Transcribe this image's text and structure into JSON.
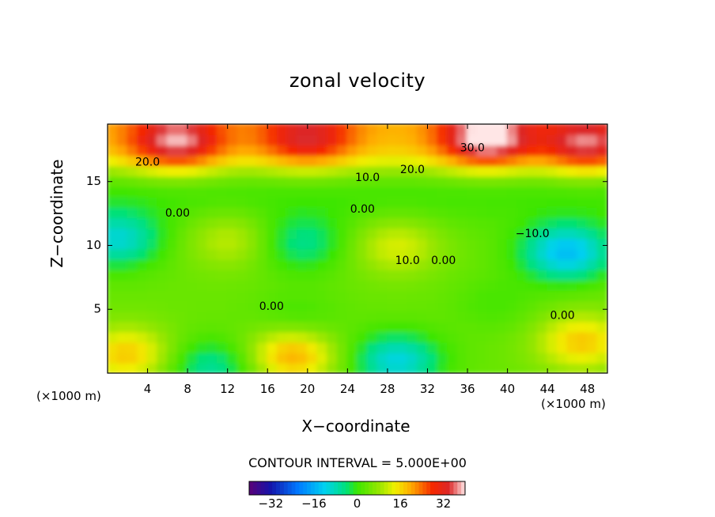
{
  "chart_data": {
    "type": "heatmap",
    "title": "zonal velocity",
    "xlabel": "X−coordinate",
    "ylabel": "Z−coordinate",
    "x_scale_note": "(×1000 m)",
    "y_scale_note": "(×1000 m)",
    "xlim": [
      0,
      50
    ],
    "ylim": [
      0,
      19.5
    ],
    "x_ticks": [
      4,
      8,
      12,
      16,
      20,
      24,
      28,
      32,
      36,
      40,
      44,
      48
    ],
    "y_ticks": [
      5,
      10,
      15
    ],
    "contour_interval_label": "CONTOUR INTERVAL = 5.000E+00",
    "contour_labels": [
      {
        "text": "20.0",
        "x": 4,
        "y": 16.5
      },
      {
        "text": "30.0",
        "x": 36.5,
        "y": 17.6
      },
      {
        "text": "20.0",
        "x": 30.5,
        "y": 15.9
      },
      {
        "text": "10.0",
        "x": 26,
        "y": 15.3
      },
      {
        "text": "0.00",
        "x": 7,
        "y": 12.5
      },
      {
        "text": "0.00",
        "x": 25.5,
        "y": 12.8
      },
      {
        "text": "−10.0",
        "x": 42.5,
        "y": 10.9
      },
      {
        "text": "10.0",
        "x": 30,
        "y": 8.8
      },
      {
        "text": "0.00",
        "x": 33.6,
        "y": 8.8
      },
      {
        "text": "0.00",
        "x": 16.4,
        "y": 5.2
      },
      {
        "text": "0.00",
        "x": 45.5,
        "y": 4.5
      }
    ],
    "field_features": [
      {
        "x": 38,
        "y": 18.5,
        "value": 34
      },
      {
        "x": 7,
        "y": 18.2,
        "value": 28
      },
      {
        "x": 20,
        "y": 18.5,
        "value": 22
      },
      {
        "x": 48,
        "y": 18,
        "value": 26
      },
      {
        "x": 29,
        "y": 10,
        "value": 12
      },
      {
        "x": 12.5,
        "y": 10.5,
        "value": 10
      },
      {
        "x": 18.5,
        "y": 1.5,
        "value": 22
      },
      {
        "x": 2,
        "y": 1.5,
        "value": 18
      },
      {
        "x": 47.5,
        "y": 2.5,
        "value": 18
      },
      {
        "x": 46,
        "y": 9.5,
        "value": -24
      },
      {
        "x": 1,
        "y": 10.5,
        "value": -18
      },
      {
        "x": 19.5,
        "y": 10.2,
        "value": -12
      },
      {
        "x": 29,
        "y": 1,
        "value": -20
      },
      {
        "x": 10.5,
        "y": 0.5,
        "value": -14
      },
      {
        "x": 19,
        "y": 4,
        "value": -6
      },
      {
        "x": 39,
        "y": 5.5,
        "value": -4
      }
    ],
    "colorbar": {
      "min": -40,
      "max": 40,
      "tick_values": [
        -32,
        -16,
        0,
        16,
        32
      ],
      "tick_labels": [
        "−32",
        "−16",
        "0",
        "16",
        "32"
      ]
    }
  }
}
